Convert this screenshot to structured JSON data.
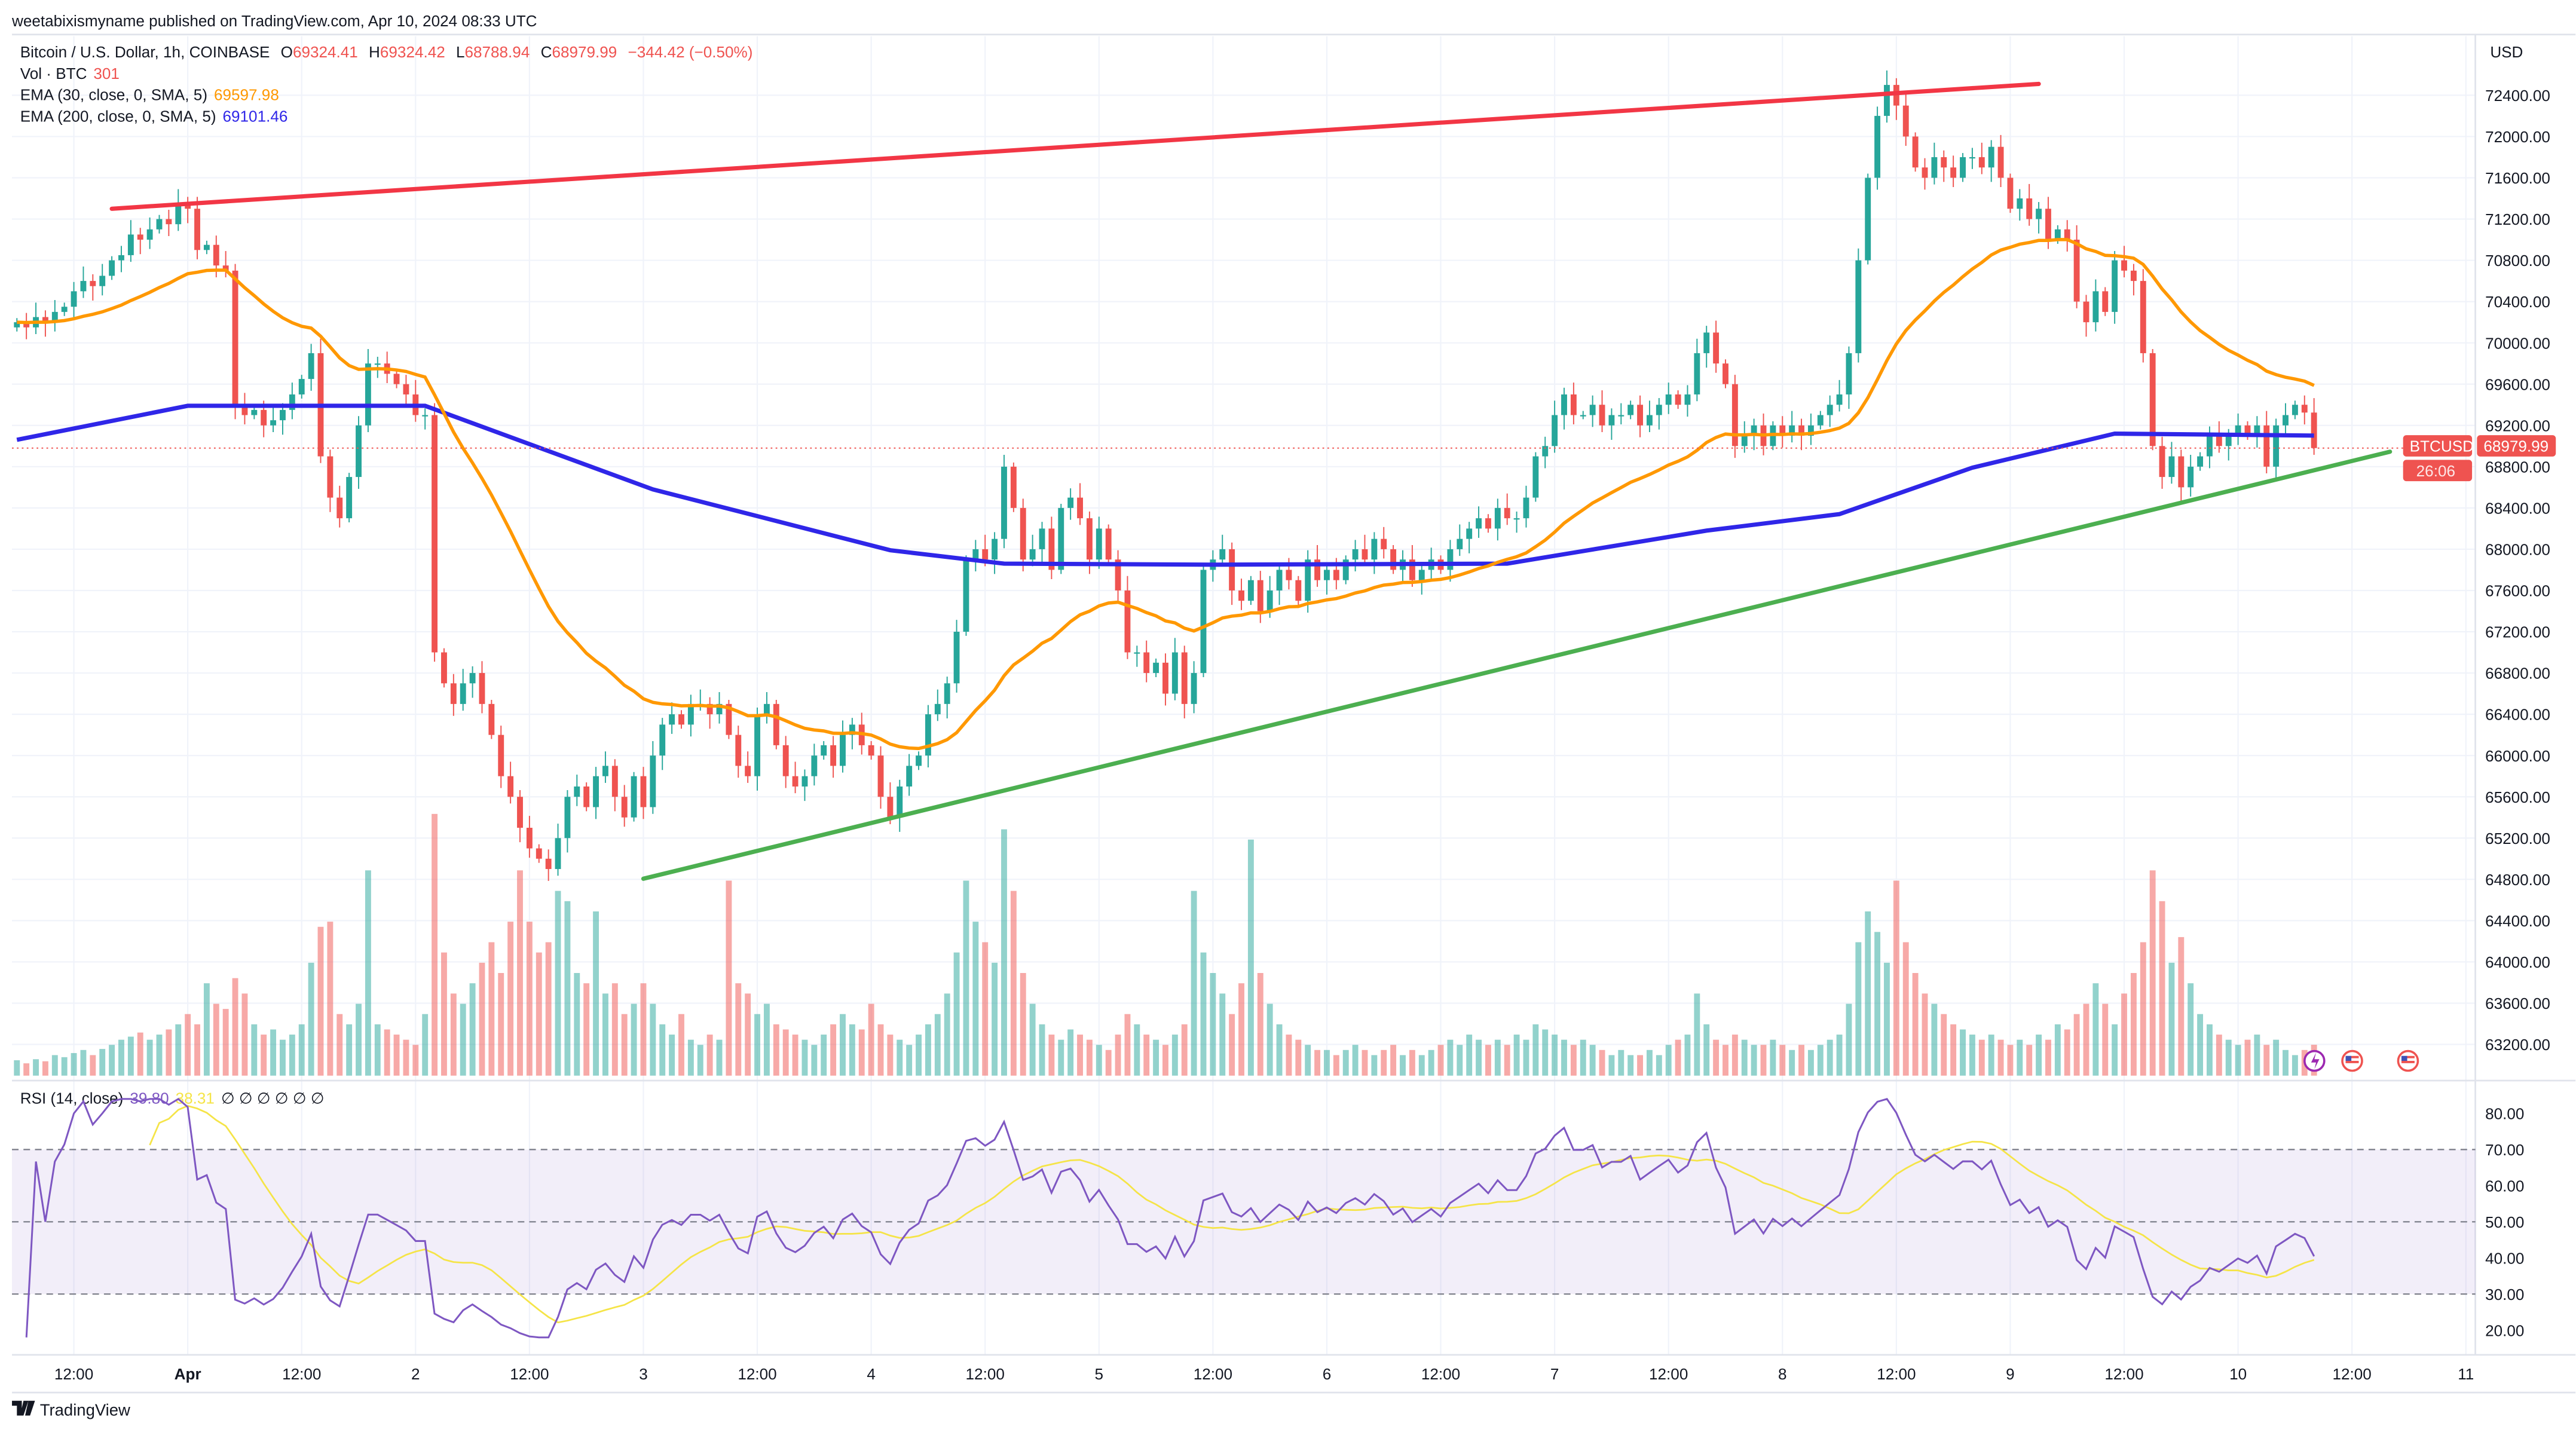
{
  "header": {
    "published": "weetabixismyname published on TradingView.com, Apr 10, 2024 08:33 UTC"
  },
  "legend": {
    "symbol": "Bitcoin / U.S. Dollar, 1h, COINBASE",
    "o_label": "O",
    "o": "69324.41",
    "h_label": "H",
    "h": "69324.42",
    "l_label": "L",
    "l": "68788.94",
    "c_label": "C",
    "c": "68979.99",
    "change": "−344.42 (−0.50%)",
    "vol_label": "Vol · BTC",
    "vol": "301",
    "ema30_label": "EMA (30, close, 0, SMA, 5)",
    "ema30": "69597.98",
    "ema200_label": "EMA (200, close, 0, SMA, 5)",
    "ema200": "69101.46",
    "rsi_label": "RSI (14, close)",
    "rsi": "39.80",
    "rsi_ma": "38.31",
    "rsi_na": "∅ ∅ ∅ ∅ ∅ ∅"
  },
  "price_axis": {
    "currency": "USD",
    "labels": [
      "72400.00",
      "72000.00",
      "71600.00",
      "71200.00",
      "70800.00",
      "70400.00",
      "70000.00",
      "69600.00",
      "69200.00",
      "68800.00",
      "68400.00",
      "68000.00",
      "67600.00",
      "67200.00",
      "66800.00",
      "66400.00",
      "66000.00",
      "65600.00",
      "65200.00",
      "64800.00",
      "64400.00",
      "64000.00",
      "63600.00",
      "63200.00"
    ],
    "last_symbol": "BTCUSD",
    "last_price": "68979.99",
    "countdown": "26:06"
  },
  "rsi_axis": {
    "labels": [
      "80.00",
      "70.00",
      "60.00",
      "50.00",
      "40.00",
      "30.00",
      "20.00"
    ]
  },
  "time_axis": {
    "labels": [
      {
        "text": "12:00",
        "hour": 6,
        "bold": false
      },
      {
        "text": "Apr",
        "hour": 18,
        "bold": true
      },
      {
        "text": "12:00",
        "hour": 30,
        "bold": false
      },
      {
        "text": "2",
        "hour": 42,
        "bold": false
      },
      {
        "text": "12:00",
        "hour": 54,
        "bold": false
      },
      {
        "text": "3",
        "hour": 66,
        "bold": false
      },
      {
        "text": "12:00",
        "hour": 78,
        "bold": false
      },
      {
        "text": "4",
        "hour": 90,
        "bold": false
      },
      {
        "text": "12:00",
        "hour": 102,
        "bold": false
      },
      {
        "text": "5",
        "hour": 114,
        "bold": false
      },
      {
        "text": "12:00",
        "hour": 126,
        "bold": false
      },
      {
        "text": "6",
        "hour": 138,
        "bold": false
      },
      {
        "text": "12:00",
        "hour": 150,
        "bold": false
      },
      {
        "text": "7",
        "hour": 162,
        "bold": false
      },
      {
        "text": "12:00",
        "hour": 174,
        "bold": false
      },
      {
        "text": "8",
        "hour": 186,
        "bold": false
      },
      {
        "text": "12:00",
        "hour": 198,
        "bold": false
      },
      {
        "text": "9",
        "hour": 210,
        "bold": false
      },
      {
        "text": "12:00",
        "hour": 222,
        "bold": false
      },
      {
        "text": "10",
        "hour": 234,
        "bold": false
      },
      {
        "text": "12:00",
        "hour": 246,
        "bold": false
      },
      {
        "text": "11",
        "hour": 258,
        "bold": false
      }
    ]
  },
  "footer": {
    "brand": "TradingView"
  },
  "colors": {
    "up": "#26a69a",
    "down": "#ef5350",
    "ema30": "#ff9800",
    "ema200": "#2f26e8",
    "rsi": "#7e57c2",
    "rsi_ma": "#f5e447",
    "resistance": "#f23645",
    "support": "#4caf50"
  },
  "icons": [
    "lightning-icon",
    "us-flag-icon",
    "us-flag-icon"
  ],
  "chart_data": {
    "type": "candlestick",
    "start": "2024-03-31 06:00 UTC",
    "interval": "1h",
    "ylim": [
      63000,
      72800
    ],
    "rsi_ylim": [
      15,
      85
    ],
    "rsi_bands": [
      70,
      50,
      30
    ],
    "grid": true,
    "close": [
      70200,
      70150,
      70250,
      70200,
      70300,
      70350,
      70500,
      70600,
      70550,
      70650,
      70800,
      70850,
      71050,
      71000,
      71100,
      71200,
      71150,
      71350,
      71300,
      70900,
      70950,
      70750,
      70700,
      69400,
      69300,
      69350,
      69200,
      69250,
      69350,
      69500,
      69650,
      69900,
      68900,
      68500,
      68300,
      68700,
      69200,
      69800,
      69800,
      69700,
      69600,
      69500,
      69300,
      69300,
      67000,
      66700,
      66500,
      66700,
      66800,
      66500,
      66200,
      65800,
      65600,
      65300,
      65100,
      65000,
      64900,
      65200,
      65600,
      65700,
      65500,
      65800,
      65900,
      65600,
      65400,
      65800,
      65500,
      66000,
      66300,
      66400,
      66300,
      66500,
      66500,
      66400,
      66500,
      66200,
      65900,
      65800,
      66400,
      66500,
      66100,
      65800,
      65700,
      65800,
      66000,
      66100,
      65900,
      66200,
      66300,
      66100,
      66000,
      65600,
      65400,
      65700,
      65900,
      66000,
      66400,
      66500,
      66700,
      67200,
      67900,
      68000,
      67900,
      68100,
      68800,
      68400,
      67900,
      68000,
      68200,
      67800,
      68400,
      68500,
      68300,
      67900,
      68200,
      67900,
      67600,
      67000,
      67000,
      66800,
      66900,
      66600,
      67000,
      66500,
      66800,
      67800,
      67900,
      68000,
      67600,
      67500,
      67700,
      67400,
      67600,
      67800,
      67700,
      67500,
      67900,
      67700,
      67800,
      67700,
      67900,
      68000,
      67900,
      68100,
      68000,
      67800,
      67900,
      67700,
      67800,
      67900,
      67800,
      68000,
      68100,
      68200,
      68300,
      68200,
      68400,
      68300,
      68300,
      68500,
      68900,
      69000,
      69300,
      69500,
      69300,
      69300,
      69400,
      69200,
      69300,
      69300,
      69400,
      69200,
      69300,
      69400,
      69500,
      69400,
      69500,
      69900,
      70100,
      69800,
      69600,
      69000,
      69100,
      69200,
      69000,
      69200,
      69100,
      69200,
      69100,
      69200,
      69300,
      69400,
      69500,
      69900,
      70800,
      71600,
      72200,
      72500,
      72300,
      72000,
      71700,
      71600,
      71800,
      71700,
      71600,
      71800,
      71800,
      71700,
      71900,
      71600,
      71300,
      71400,
      71200,
      71300,
      71000,
      71100,
      71000,
      70400,
      70200,
      70500,
      70300,
      70800,
      70700,
      70600,
      69900,
      69000,
      68700,
      68900,
      68600,
      68800,
      68900,
      69100,
      69000,
      69100,
      69200,
      69100,
      69200,
      68800,
      69200,
      69300,
      69400,
      69324.41,
      68979.99
    ],
    "volume": [
      150,
      120,
      160,
      140,
      200,
      180,
      220,
      250,
      200,
      260,
      300,
      350,
      380,
      420,
      350,
      400,
      450,
      500,
      600,
      500,
      900,
      700,
      650,
      950,
      800,
      500,
      400,
      450,
      350,
      400,
      500,
      1100,
      1450,
      1500,
      600,
      500,
      700,
      2000,
      500,
      450,
      400,
      350,
      300,
      600,
      2550,
      1200,
      800,
      700,
      900,
      1100,
      1300,
      1000,
      1500,
      2000,
      1500,
      1200,
      1300,
      1800,
      1700,
      1000,
      900,
      1600,
      800,
      900,
      600,
      700,
      900,
      700,
      500,
      400,
      600,
      350,
      300,
      400,
      350,
      1900,
      900,
      800,
      600,
      700,
      500,
      450,
      400,
      350,
      300,
      400,
      500,
      600,
      500,
      450,
      700,
      500,
      400,
      350,
      300,
      400,
      500,
      600,
      800,
      1200,
      1900,
      1500,
      1300,
      1100,
      2400,
      1800,
      1000,
      700,
      500,
      400,
      350,
      450,
      400,
      350,
      300,
      250,
      400,
      600,
      500,
      400,
      350,
      300,
      400,
      500,
      1800,
      1200,
      1000,
      800,
      600,
      900,
      2300,
      1000,
      700,
      500,
      400,
      350,
      300,
      250,
      250,
      200,
      250,
      300,
      250,
      200,
      250,
      300,
      200,
      250,
      200,
      250,
      300,
      350,
      300,
      400,
      350,
      300,
      350,
      300,
      400,
      350,
      500,
      450,
      400,
      350,
      300,
      350,
      300,
      250,
      200,
      250,
      200,
      200,
      250,
      200,
      300,
      350,
      400,
      800,
      500,
      350,
      300,
      400,
      350,
      300,
      300,
      350,
      300,
      250,
      300,
      250,
      300,
      350,
      400,
      700,
      1300,
      1600,
      1400,
      1100,
      1900,
      1300,
      1000,
      800,
      700,
      600,
      500,
      450,
      400,
      350,
      400,
      350,
      300,
      350,
      300,
      400,
      350,
      500,
      450,
      600,
      700,
      900,
      700,
      500,
      800,
      1000,
      1300,
      2000,
      1700,
      1100,
      1350,
      900,
      600,
      500,
      400,
      350,
      300,
      350,
      400,
      300,
      350,
      250,
      200,
      250,
      301
    ],
    "ema200_points": [
      [
        0,
        69060
      ],
      [
        18,
        69390
      ],
      [
        43,
        69390
      ],
      [
        67,
        68580
      ],
      [
        92,
        67990
      ],
      [
        104,
        67860
      ],
      [
        126,
        67850
      ],
      [
        157,
        67860
      ],
      [
        178,
        68180
      ],
      [
        192,
        68340
      ],
      [
        206,
        68790
      ],
      [
        221,
        69120
      ],
      [
        242,
        69101.46
      ]
    ],
    "trendlines": [
      {
        "role": "resistance",
        "from": [
          10,
          71300
        ],
        "to": [
          213,
          72510
        ]
      },
      {
        "role": "support",
        "from": [
          66,
          64806
        ],
        "to": [
          250,
          68945
        ]
      }
    ]
  }
}
